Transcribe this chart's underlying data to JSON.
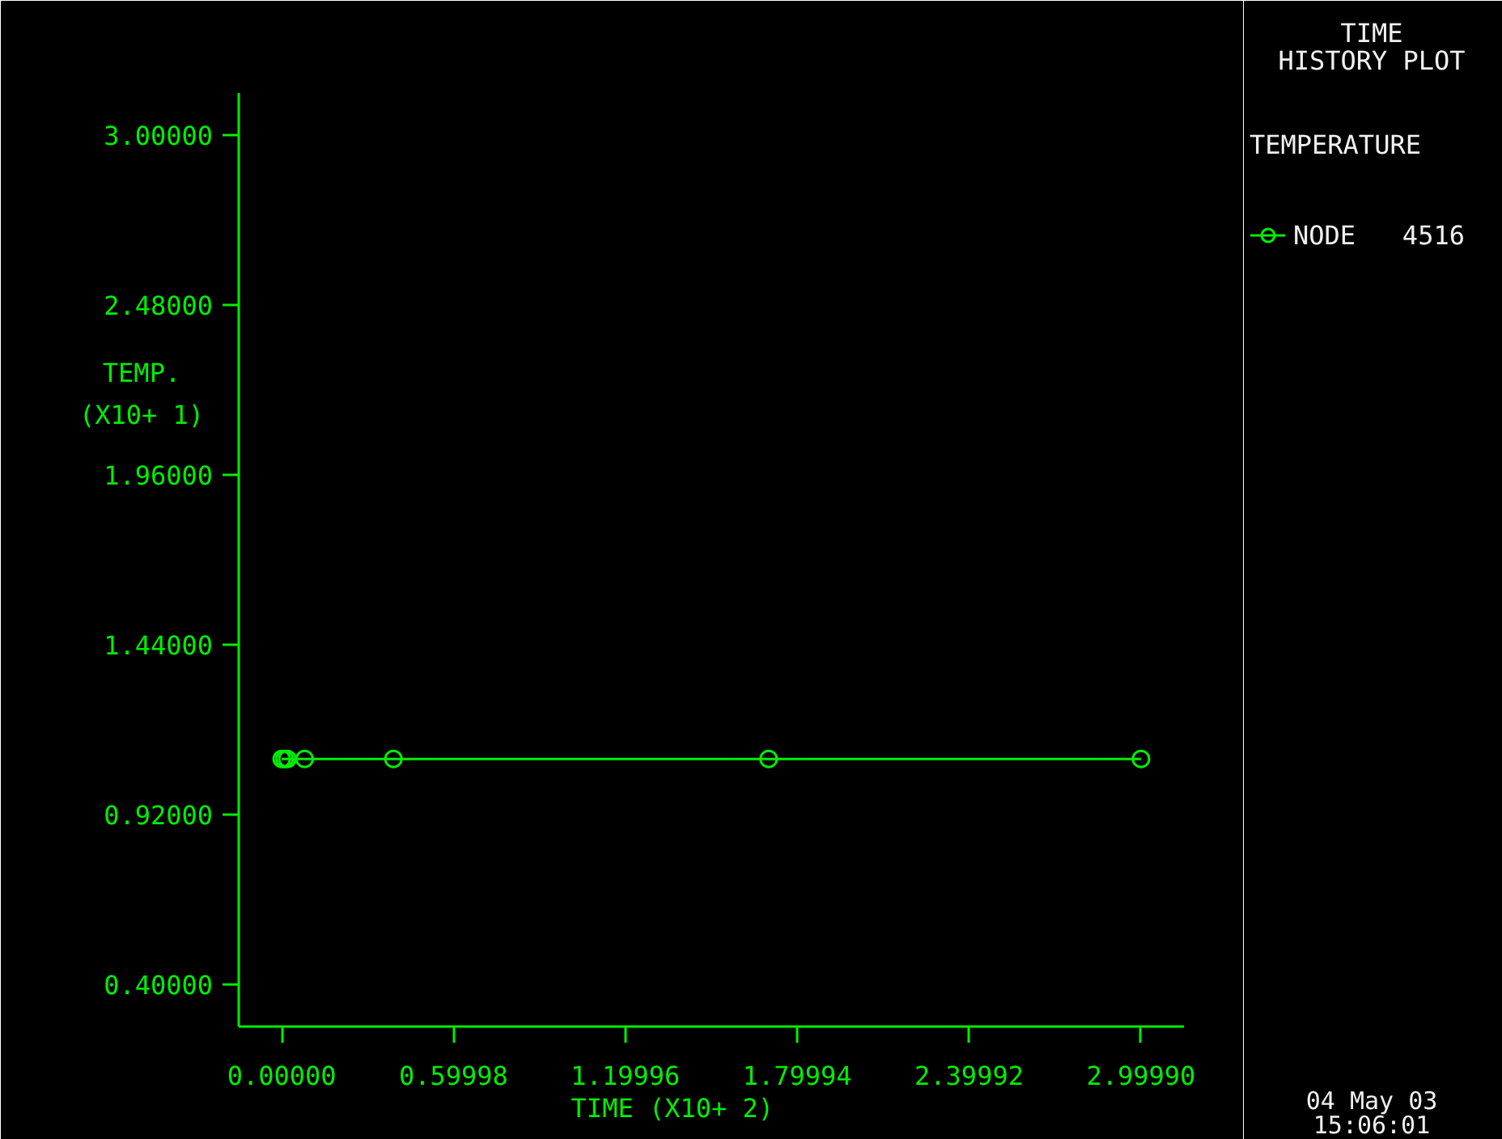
{
  "chart_data": {
    "type": "line",
    "title": "TIME\nHISTORY PLOT",
    "legend_title": "TEMPERATURE",
    "xlabel": "TIME      (X10+ 2)",
    "ylabel": "TEMP.\n(X10+ 1)",
    "xlim": [
      -0.15,
      3.15
    ],
    "ylim": [
      0.27,
      3.13
    ],
    "xticks": [
      {
        "value": 0,
        "label": "0.00000"
      },
      {
        "value": 0.59998,
        "label": "0.59998"
      },
      {
        "value": 1.19996,
        "label": "1.19996"
      },
      {
        "value": 1.79994,
        "label": "1.79994"
      },
      {
        "value": 2.39992,
        "label": "2.39992"
      },
      {
        "value": 2.9999,
        "label": "2.99990"
      }
    ],
    "yticks": [
      {
        "value": 0.4,
        "label": "0.40000"
      },
      {
        "value": 0.92,
        "label": "0.92000"
      },
      {
        "value": 1.44,
        "label": "1.44000"
      },
      {
        "value": 1.96,
        "label": "1.96000"
      },
      {
        "value": 2.48,
        "label": "2.48000"
      },
      {
        "value": 3.0,
        "label": "3.00000"
      }
    ],
    "x": [
      0,
      0.01,
      0.02,
      0.08,
      0.39,
      1.7,
      3.0
    ],
    "series": [
      {
        "name": "NODE   4516",
        "color": "#00ee00",
        "values": [
          1.09,
          1.09,
          1.09,
          1.09,
          1.09,
          1.09,
          1.09
        ]
      }
    ],
    "marker": "circle",
    "grid": false,
    "legend": "right",
    "annotations": [
      "04 May 03",
      "15:06:01"
    ]
  }
}
